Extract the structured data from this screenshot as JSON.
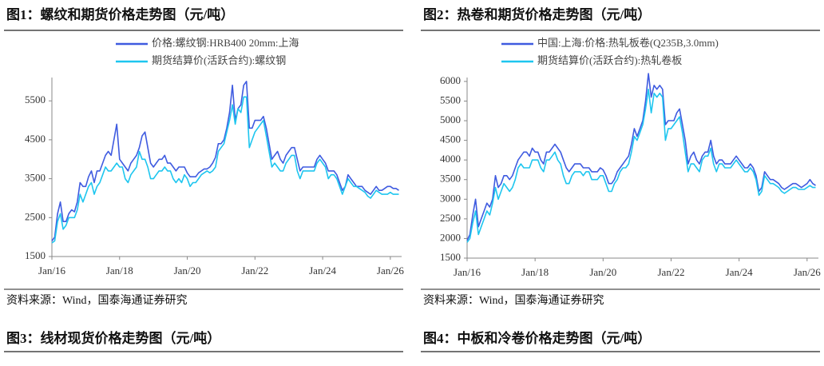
{
  "chart_data": [
    {
      "type": "line",
      "title": "图1：螺纹和期货价格走势图（元/吨）",
      "source": "资料来源：Wind，国泰海通证券研究",
      "x": [
        "2016-01",
        "2016-02",
        "2016-03",
        "2016-04",
        "2016-05",
        "2016-06",
        "2016-07",
        "2016-08",
        "2016-09",
        "2016-10",
        "2016-11",
        "2016-12",
        "2017-01",
        "2017-02",
        "2017-03",
        "2017-04",
        "2017-05",
        "2017-06",
        "2017-07",
        "2017-08",
        "2017-09",
        "2017-10",
        "2017-11",
        "2017-12",
        "2018-01",
        "2018-02",
        "2018-03",
        "2018-04",
        "2018-05",
        "2018-06",
        "2018-07",
        "2018-08",
        "2018-09",
        "2018-10",
        "2018-11",
        "2018-12",
        "2019-01",
        "2019-02",
        "2019-03",
        "2019-04",
        "2019-05",
        "2019-06",
        "2019-07",
        "2019-08",
        "2019-09",
        "2019-10",
        "2019-11",
        "2019-12",
        "2020-01",
        "2020-02",
        "2020-03",
        "2020-04",
        "2020-05",
        "2020-06",
        "2020-07",
        "2020-08",
        "2020-09",
        "2020-10",
        "2020-11",
        "2020-12",
        "2021-01",
        "2021-02",
        "2021-03",
        "2021-04",
        "2021-05",
        "2021-06",
        "2021-07",
        "2021-08",
        "2021-09",
        "2021-10",
        "2021-11",
        "2021-12",
        "2022-01",
        "2022-02",
        "2022-03",
        "2022-04",
        "2022-05",
        "2022-06",
        "2022-07",
        "2022-08",
        "2022-09",
        "2022-10",
        "2022-11",
        "2022-12",
        "2023-01",
        "2023-02",
        "2023-03",
        "2023-04",
        "2023-05",
        "2023-06",
        "2023-07",
        "2023-08",
        "2023-09",
        "2023-10",
        "2023-11",
        "2023-12",
        "2024-01",
        "2024-02",
        "2024-03",
        "2024-04",
        "2024-05",
        "2024-06",
        "2024-07",
        "2024-08",
        "2024-09",
        "2024-10",
        "2024-11",
        "2024-12",
        "2025-01",
        "2025-02",
        "2025-03",
        "2025-04",
        "2025-05",
        "2025-06",
        "2025-07",
        "2025-08",
        "2025-09",
        "2025-10",
        "2025-11",
        "2025-12",
        "2026-01",
        "2026-02",
        "2026-03",
        "2026-04"
      ],
      "series": [
        {
          "name": "价格:螺纹钢:HRB400 20mm:上海",
          "color": "#3f5be0",
          "values": [
            1900,
            2000,
            2600,
            2900,
            2400,
            2400,
            2600,
            2700,
            2650,
            2900,
            3400,
            3300,
            3300,
            3550,
            3700,
            3400,
            3700,
            3700,
            3900,
            4100,
            4200,
            4100,
            4500,
            4900,
            4000,
            3900,
            3800,
            3700,
            3900,
            4000,
            4100,
            4300,
            4600,
            4700,
            4300,
            3900,
            3800,
            3900,
            4000,
            4000,
            4100,
            3900,
            3900,
            3800,
            3700,
            3800,
            3800,
            3800,
            3650,
            3550,
            3550,
            3550,
            3650,
            3700,
            3750,
            3750,
            3800,
            3900,
            4050,
            4400,
            4400,
            4500,
            4800,
            5200,
            5900,
            5000,
            5300,
            5400,
            5900,
            6000,
            4800,
            4800,
            5000,
            5000,
            5000,
            5100,
            4800,
            4400,
            4000,
            4100,
            4200,
            4000,
            3900,
            4100,
            4200,
            4300,
            4300,
            4000,
            3700,
            3800,
            3800,
            3800,
            3800,
            3800,
            4000,
            4100,
            4000,
            3900,
            3700,
            3700,
            3700,
            3600,
            3400,
            3200,
            3300,
            3600,
            3500,
            3400,
            3300,
            3300,
            3300,
            3200,
            3150,
            3100,
            3200,
            3300,
            3200,
            3200,
            3250,
            3300,
            3300,
            3250,
            3250,
            3200
          ]
        },
        {
          "name": "期货结算价(活跃合约):螺纹钢",
          "color": "#1ec6ef",
          "values": [
            1850,
            1900,
            2400,
            2600,
            2200,
            2300,
            2500,
            2500,
            2500,
            2700,
            3100,
            2900,
            3100,
            3300,
            3400,
            3100,
            3300,
            3400,
            3600,
            3800,
            3700,
            3700,
            3800,
            3900,
            3800,
            3800,
            3500,
            3400,
            3600,
            3700,
            3800,
            4200,
            4000,
            4000,
            3800,
            3500,
            3500,
            3600,
            3700,
            3700,
            3800,
            3700,
            3700,
            3500,
            3400,
            3500,
            3400,
            3600,
            3500,
            3300,
            3400,
            3400,
            3500,
            3600,
            3650,
            3700,
            3650,
            3700,
            3800,
            4200,
            4300,
            4400,
            4700,
            5000,
            5400,
            4900,
            5300,
            5200,
            5600,
            5600,
            4300,
            4500,
            4700,
            4800,
            4900,
            5000,
            4600,
            4200,
            3800,
            3900,
            3800,
            3700,
            3700,
            3900,
            4000,
            4100,
            4100,
            3700,
            3500,
            3700,
            3700,
            3700,
            3700,
            3700,
            3900,
            4000,
            3900,
            3800,
            3500,
            3600,
            3600,
            3500,
            3300,
            3100,
            3300,
            3500,
            3400,
            3300,
            3300,
            3250,
            3200,
            3150,
            3050,
            3000,
            3100,
            3200,
            3150,
            3100,
            3100,
            3100,
            3150,
            3100,
            3100,
            3100
          ]
        }
      ],
      "xlim": [
        "2016-01",
        "2026-05"
      ],
      "xticks": [
        {
          "value": "2016-01",
          "label": "Jan/16"
        },
        {
          "value": "2018-01",
          "label": "Jan/18"
        },
        {
          "value": "2020-01",
          "label": "Jan/20"
        },
        {
          "value": "2022-01",
          "label": "Jan/22"
        },
        {
          "value": "2024-01",
          "label": "Jan/24"
        },
        {
          "value": "2026-01",
          "label": "Jan/26"
        }
      ],
      "ylim": [
        1500,
        6100
      ],
      "yticks": [
        1500,
        2500,
        3500,
        4500,
        5500
      ],
      "grid": false
    },
    {
      "type": "line",
      "title": "图2：热卷和期货价格走势图（元/吨）",
      "source": "资料来源：Wind，国泰海通证券研究",
      "x": [
        "2016-01",
        "2016-02",
        "2016-03",
        "2016-04",
        "2016-05",
        "2016-06",
        "2016-07",
        "2016-08",
        "2016-09",
        "2016-10",
        "2016-11",
        "2016-12",
        "2017-01",
        "2017-02",
        "2017-03",
        "2017-04",
        "2017-05",
        "2017-06",
        "2017-07",
        "2017-08",
        "2017-09",
        "2017-10",
        "2017-11",
        "2017-12",
        "2018-01",
        "2018-02",
        "2018-03",
        "2018-04",
        "2018-05",
        "2018-06",
        "2018-07",
        "2018-08",
        "2018-09",
        "2018-10",
        "2018-11",
        "2018-12",
        "2019-01",
        "2019-02",
        "2019-03",
        "2019-04",
        "2019-05",
        "2019-06",
        "2019-07",
        "2019-08",
        "2019-09",
        "2019-10",
        "2019-11",
        "2019-12",
        "2020-01",
        "2020-02",
        "2020-03",
        "2020-04",
        "2020-05",
        "2020-06",
        "2020-07",
        "2020-08",
        "2020-09",
        "2020-10",
        "2020-11",
        "2020-12",
        "2021-01",
        "2021-02",
        "2021-03",
        "2021-04",
        "2021-05",
        "2021-06",
        "2021-07",
        "2021-08",
        "2021-09",
        "2021-10",
        "2021-11",
        "2021-12",
        "2022-01",
        "2022-02",
        "2022-03",
        "2022-04",
        "2022-05",
        "2022-06",
        "2022-07",
        "2022-08",
        "2022-09",
        "2022-10",
        "2022-11",
        "2022-12",
        "2023-01",
        "2023-02",
        "2023-03",
        "2023-04",
        "2023-05",
        "2023-06",
        "2023-07",
        "2023-08",
        "2023-09",
        "2023-10",
        "2023-11",
        "2023-12",
        "2024-01",
        "2024-02",
        "2024-03",
        "2024-04",
        "2024-05",
        "2024-06",
        "2024-07",
        "2024-08",
        "2024-09",
        "2024-10",
        "2024-11",
        "2024-12",
        "2025-01",
        "2025-02",
        "2025-03",
        "2025-04",
        "2025-05",
        "2025-06",
        "2025-07",
        "2025-08",
        "2025-09",
        "2025-10",
        "2025-11",
        "2025-12",
        "2026-01",
        "2026-02",
        "2026-03",
        "2026-04"
      ],
      "series": [
        {
          "name": "中国:上海:价格:热轧板卷(Q235B,3.0mm)",
          "color": "#3f5be0",
          "values": [
            1950,
            2100,
            2600,
            3000,
            2300,
            2500,
            2700,
            2900,
            2800,
            3000,
            3600,
            3300,
            3400,
            3600,
            3600,
            3500,
            3600,
            3800,
            4000,
            4100,
            4200,
            4200,
            4100,
            4300,
            4200,
            4200,
            4000,
            3900,
            4200,
            4200,
            4300,
            4400,
            4300,
            4200,
            4000,
            3800,
            3700,
            3800,
            3900,
            3900,
            3900,
            3800,
            3800,
            3800,
            3700,
            3700,
            3700,
            3800,
            3750,
            3600,
            3400,
            3400,
            3500,
            3700,
            3800,
            3900,
            4000,
            4100,
            4400,
            4800,
            4600,
            4800,
            5000,
            5500,
            6200,
            5600,
            5900,
            5800,
            5900,
            5800,
            4900,
            5000,
            5000,
            5000,
            5200,
            5300,
            4900,
            4500,
            3900,
            4100,
            4200,
            4000,
            3900,
            4100,
            4200,
            4200,
            4500,
            4100,
            3900,
            4000,
            4000,
            3900,
            3900,
            3900,
            4000,
            4100,
            4000,
            3900,
            3800,
            3800,
            3900,
            3800,
            3600,
            3200,
            3300,
            3700,
            3600,
            3500,
            3500,
            3450,
            3400,
            3300,
            3250,
            3300,
            3350,
            3400,
            3400,
            3350,
            3300,
            3350,
            3400,
            3500,
            3400,
            3350
          ]
        },
        {
          "name": "期货结算价(活跃合约):热轧卷板",
          "color": "#1ec6ef",
          "values": [
            1900,
            2000,
            2400,
            2700,
            2100,
            2300,
            2500,
            2700,
            2600,
            2900,
            3300,
            3000,
            3200,
            3400,
            3300,
            3200,
            3300,
            3500,
            3800,
            3900,
            3800,
            3800,
            3800,
            4000,
            4000,
            4000,
            3800,
            3700,
            4000,
            4000,
            4100,
            4200,
            4000,
            3900,
            3600,
            3400,
            3400,
            3600,
            3700,
            3700,
            3700,
            3600,
            3700,
            3700,
            3500,
            3500,
            3500,
            3600,
            3600,
            3400,
            3200,
            3200,
            3400,
            3500,
            3700,
            3800,
            3800,
            3900,
            4200,
            4600,
            4500,
            4700,
            4900,
            5300,
            5800,
            5200,
            5700,
            5600,
            5700,
            5600,
            4500,
            4800,
            4800,
            4900,
            5000,
            5100,
            4700,
            4200,
            3700,
            3900,
            3900,
            3800,
            3700,
            4000,
            4100,
            4100,
            4300,
            3900,
            3700,
            3900,
            3900,
            3800,
            3800,
            3800,
            3900,
            4000,
            3900,
            3800,
            3700,
            3700,
            3800,
            3700,
            3500,
            3100,
            3200,
            3600,
            3500,
            3400,
            3400,
            3350,
            3300,
            3200,
            3150,
            3200,
            3250,
            3300,
            3300,
            3250,
            3250,
            3250,
            3300,
            3350,
            3300,
            3300
          ]
        }
      ],
      "xlim": [
        "2016-01",
        "2026-05"
      ],
      "xticks": [
        {
          "value": "2016-01",
          "label": "Jan/16"
        },
        {
          "value": "2018-01",
          "label": "Jan/18"
        },
        {
          "value": "2020-01",
          "label": "Jan/20"
        },
        {
          "value": "2022-01",
          "label": "Jan/22"
        },
        {
          "value": "2024-01",
          "label": "Jan/24"
        },
        {
          "value": "2026-01",
          "label": "Jan/26"
        }
      ],
      "ylim": [
        1500,
        6100
      ],
      "yticks": [
        1500,
        2000,
        2500,
        3000,
        3500,
        4000,
        4500,
        5000,
        5500,
        6000
      ],
      "grid": false
    }
  ],
  "next_figures": [
    "图3：线材现货价格走势图（元/吨）",
    "图4：中板和冷卷价格走势图（元/吨）"
  ]
}
